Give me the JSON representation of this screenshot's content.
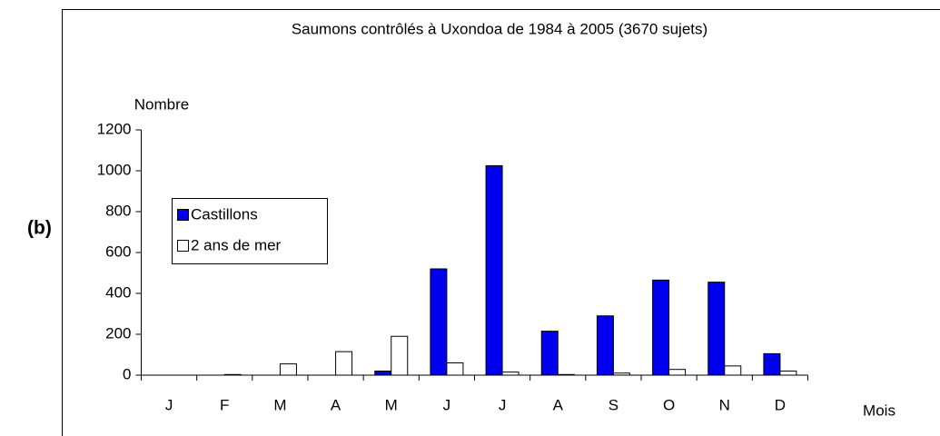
{
  "chart_data": {
    "type": "bar",
    "title": "Saumons contrôlés à Uxondoa de 1984 à 2005 (3670 sujets)",
    "panel_label": "(b)",
    "y_label": "Nombre",
    "x_label": "Mois",
    "categories": [
      "J",
      "F",
      "M",
      "A",
      "M",
      "J",
      "J",
      "A",
      "S",
      "O",
      "N",
      "D"
    ],
    "series": [
      {
        "name": "Castillons",
        "color": "#0000ee",
        "values": [
          0,
          0,
          0,
          0,
          20,
          520,
          1025,
          215,
          290,
          465,
          455,
          105
        ]
      },
      {
        "name": "2 ans de mer",
        "color": "#ffffff",
        "values": [
          0,
          3,
          55,
          115,
          190,
          60,
          15,
          3,
          10,
          28,
          45,
          20
        ]
      }
    ],
    "ylim": [
      0,
      1200
    ],
    "yticks": [
      0,
      200,
      400,
      600,
      800,
      1000,
      1200
    ],
    "grid": false
  }
}
